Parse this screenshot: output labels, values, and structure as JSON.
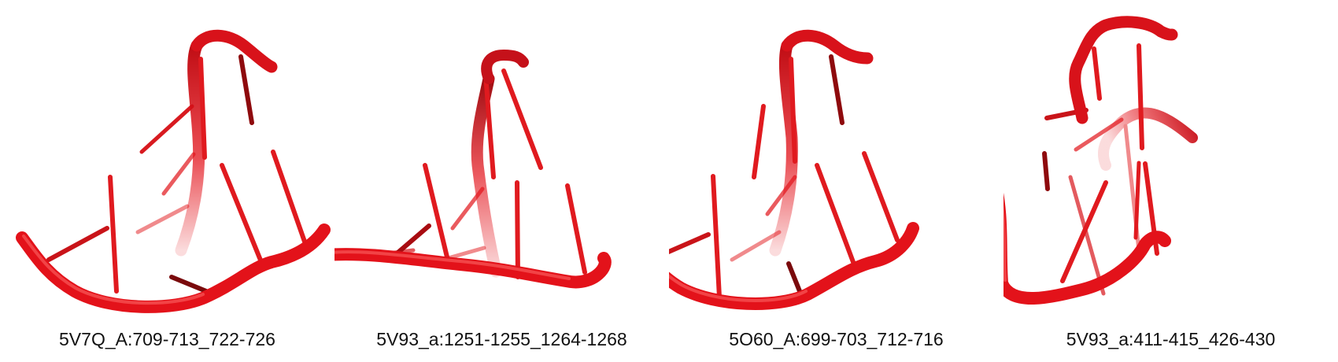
{
  "colors": {
    "backbone": "#e3121a",
    "backbone_dark": "#8e0a0d",
    "backbone_highlight": "#ff7070",
    "base": "#e01a1f",
    "base_faded": "#f08a8c",
    "caption": "#111111",
    "background": "#ffffff"
  },
  "panels": [
    {
      "id": "5V7Q",
      "label": "5V7Q_A:709-713_722-726"
    },
    {
      "id": "5V93a",
      "label": "5V93_a:1251-1255_1264-1268"
    },
    {
      "id": "5O60",
      "label": "5O60_A:699-703_712-716"
    },
    {
      "id": "5V93b",
      "label": "5V93_a:411-415_426-430"
    }
  ]
}
